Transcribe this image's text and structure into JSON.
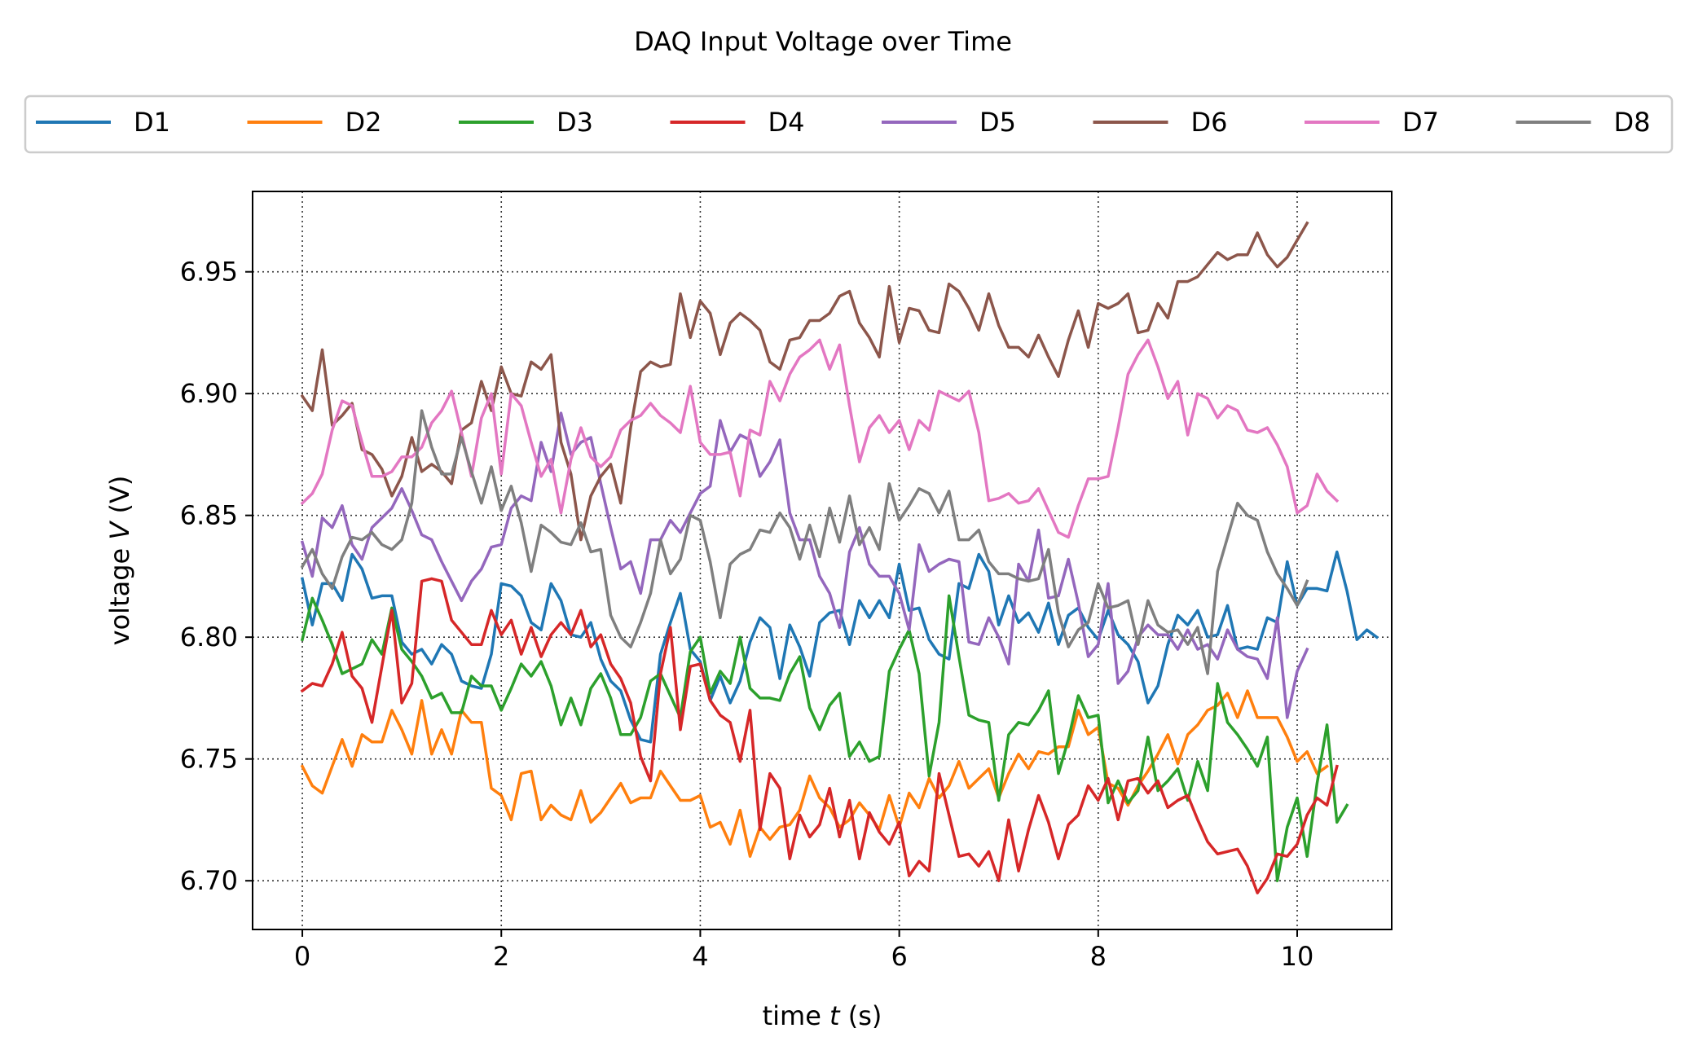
{
  "chart_data": {
    "type": "line",
    "title": "DAQ Input Voltage over Time",
    "xlabel": "time t (s)",
    "xlabel_parts": {
      "prefix": "time ",
      "var": "t",
      "suffix": " (s)"
    },
    "ylabel": "voltage V (V)",
    "ylabel_parts": {
      "prefix": "voltage ",
      "var": "V",
      "suffix": " (V)"
    },
    "xlim": [
      -0.5,
      10.95
    ],
    "ylim": [
      6.68,
      6.983
    ],
    "xticks": [
      0,
      2,
      4,
      6,
      8,
      10
    ],
    "xtick_labels": [
      "0",
      "2",
      "4",
      "6",
      "8",
      "10"
    ],
    "yticks": [
      6.7,
      6.75,
      6.8,
      6.85,
      6.9,
      6.95
    ],
    "ytick_labels": [
      "6.70",
      "6.75",
      "6.80",
      "6.85",
      "6.90",
      "6.95"
    ],
    "grid": true,
    "legend_placement": "top, above plot, single row",
    "x_step": 0.1,
    "series": [
      {
        "name": "D1",
        "color": "#1f77b4",
        "values": [
          6.824,
          6.805,
          6.822,
          6.822,
          6.815,
          6.834,
          6.828,
          6.816,
          6.817,
          6.817,
          6.798,
          6.793,
          6.795,
          6.789,
          6.797,
          6.793,
          6.782,
          6.78,
          6.779,
          6.793,
          6.822,
          6.821,
          6.817,
          6.806,
          6.803,
          6.822,
          6.815,
          6.801,
          6.8,
          6.806,
          6.791,
          6.782,
          6.778,
          6.766,
          6.758,
          6.757,
          6.793,
          6.806,
          6.818,
          6.795,
          6.79,
          6.774,
          6.784,
          6.773,
          6.782,
          6.798,
          6.808,
          6.804,
          6.783,
          6.805,
          6.796,
          6.784,
          6.806,
          6.81,
          6.811,
          6.797,
          6.815,
          6.808,
          6.815,
          6.808,
          6.83,
          6.811,
          6.812,
          6.799,
          6.793,
          6.791,
          6.822,
          6.82,
          6.834,
          6.827,
          6.805,
          6.817,
          6.806,
          6.81,
          6.802,
          6.814,
          6.797,
          6.809,
          6.812,
          6.804,
          6.799,
          6.811,
          6.801,
          6.797,
          6.79,
          6.773,
          6.78,
          6.797,
          6.809,
          6.805,
          6.811,
          6.8,
          6.801,
          6.813,
          6.795,
          6.796,
          6.795,
          6.808,
          6.806,
          6.831,
          6.813,
          6.82,
          6.82,
          6.819,
          6.835,
          6.819,
          6.799,
          6.803,
          6.8
        ]
      },
      {
        "name": "D2",
        "color": "#ff7f0e",
        "values": [
          6.747,
          6.739,
          6.736,
          6.747,
          6.758,
          6.747,
          6.76,
          6.757,
          6.757,
          6.77,
          6.762,
          6.752,
          6.774,
          6.752,
          6.762,
          6.752,
          6.77,
          6.765,
          6.765,
          6.738,
          6.735,
          6.725,
          6.744,
          6.745,
          6.725,
          6.731,
          6.727,
          6.725,
          6.737,
          6.724,
          6.728,
          6.734,
          6.74,
          6.732,
          6.734,
          6.734,
          6.745,
          6.739,
          6.733,
          6.733,
          6.735,
          6.722,
          6.724,
          6.715,
          6.729,
          6.71,
          6.722,
          6.717,
          6.722,
          6.723,
          6.729,
          6.743,
          6.734,
          6.73,
          6.722,
          6.725,
          6.732,
          6.727,
          6.721,
          6.735,
          6.722,
          6.736,
          6.73,
          6.742,
          6.734,
          6.739,
          6.749,
          6.738,
          6.742,
          6.746,
          6.734,
          6.744,
          6.752,
          6.746,
          6.753,
          6.752,
          6.755,
          6.755,
          6.77,
          6.76,
          6.763,
          6.74,
          6.738,
          6.731,
          6.739,
          6.745,
          6.752,
          6.76,
          6.748,
          6.76,
          6.764,
          6.77,
          6.772,
          6.777,
          6.767,
          6.778,
          6.767,
          6.767,
          6.767,
          6.759,
          6.749,
          6.753,
          6.744,
          6.747
        ]
      },
      {
        "name": "D3",
        "color": "#2ca02c",
        "values": [
          6.799,
          6.816,
          6.807,
          6.797,
          6.785,
          6.787,
          6.789,
          6.799,
          6.793,
          6.812,
          6.795,
          6.79,
          6.784,
          6.775,
          6.777,
          6.769,
          6.769,
          6.784,
          6.78,
          6.78,
          6.77,
          6.779,
          6.789,
          6.784,
          6.79,
          6.78,
          6.764,
          6.775,
          6.764,
          6.779,
          6.785,
          6.775,
          6.76,
          6.76,
          6.767,
          6.782,
          6.785,
          6.776,
          6.767,
          6.794,
          6.8,
          6.777,
          6.786,
          6.781,
          6.8,
          6.779,
          6.775,
          6.775,
          6.774,
          6.785,
          6.792,
          6.771,
          6.762,
          6.772,
          6.777,
          6.751,
          6.757,
          6.749,
          6.751,
          6.786,
          6.795,
          6.803,
          6.785,
          6.743,
          6.765,
          6.817,
          6.792,
          6.768,
          6.766,
          6.765,
          6.733,
          6.76,
          6.765,
          6.764,
          6.77,
          6.778,
          6.744,
          6.758,
          6.776,
          6.767,
          6.768,
          6.732,
          6.741,
          6.732,
          6.737,
          6.759,
          6.737,
          6.741,
          6.746,
          6.733,
          6.749,
          6.737,
          6.781,
          6.765,
          6.76,
          6.754,
          6.747,
          6.759,
          6.7,
          6.722,
          6.734,
          6.71,
          6.74,
          6.764,
          6.724,
          6.731
        ]
      },
      {
        "name": "D4",
        "color": "#d62728",
        "values": [
          6.778,
          6.781,
          6.78,
          6.789,
          6.802,
          6.784,
          6.779,
          6.765,
          6.788,
          6.811,
          6.773,
          6.781,
          6.823,
          6.824,
          6.823,
          6.807,
          6.802,
          6.797,
          6.797,
          6.811,
          6.801,
          6.807,
          6.793,
          6.804,
          6.792,
          6.801,
          6.806,
          6.801,
          6.811,
          6.796,
          6.801,
          6.789,
          6.783,
          6.773,
          6.751,
          6.741,
          6.785,
          6.804,
          6.762,
          6.788,
          6.789,
          6.774,
          6.768,
          6.765,
          6.749,
          6.77,
          6.721,
          6.744,
          6.738,
          6.709,
          6.727,
          6.718,
          6.723,
          6.738,
          6.718,
          6.733,
          6.709,
          6.728,
          6.72,
          6.715,
          6.724,
          6.702,
          6.708,
          6.704,
          6.744,
          6.727,
          6.71,
          6.711,
          6.706,
          6.712,
          6.7,
          6.725,
          6.704,
          6.721,
          6.735,
          6.724,
          6.709,
          6.723,
          6.727,
          6.739,
          6.733,
          6.742,
          6.725,
          6.741,
          6.742,
          6.736,
          6.741,
          6.73,
          6.733,
          6.735,
          6.725,
          6.716,
          6.711,
          6.712,
          6.713,
          6.706,
          6.695,
          6.701,
          6.711,
          6.71,
          6.715,
          6.727,
          6.734,
          6.731,
          6.747
        ]
      },
      {
        "name": "D5",
        "color": "#9467bd",
        "values": [
          6.839,
          6.825,
          6.849,
          6.845,
          6.854,
          6.838,
          6.832,
          6.845,
          6.849,
          6.853,
          6.861,
          6.852,
          6.842,
          6.84,
          6.831,
          6.823,
          6.815,
          6.823,
          6.828,
          6.837,
          6.838,
          6.853,
          6.858,
          6.856,
          6.88,
          6.868,
          6.892,
          6.875,
          6.88,
          6.882,
          6.863,
          6.845,
          6.828,
          6.831,
          6.818,
          6.84,
          6.84,
          6.848,
          6.843,
          6.851,
          6.859,
          6.862,
          6.889,
          6.876,
          6.883,
          6.881,
          6.866,
          6.872,
          6.881,
          6.851,
          6.84,
          6.84,
          6.825,
          6.818,
          6.804,
          6.835,
          6.845,
          6.83,
          6.825,
          6.825,
          6.818,
          6.803,
          6.838,
          6.827,
          6.83,
          6.832,
          6.831,
          6.798,
          6.797,
          6.808,
          6.8,
          6.789,
          6.83,
          6.823,
          6.844,
          6.816,
          6.817,
          6.832,
          6.814,
          6.792,
          6.797,
          6.822,
          6.781,
          6.786,
          6.8,
          6.805,
          6.801,
          6.801,
          6.795,
          6.803,
          6.795,
          6.797,
          6.791,
          6.803,
          6.795,
          6.792,
          6.791,
          6.783,
          6.808,
          6.767,
          6.786,
          6.795
        ]
      },
      {
        "name": "D6",
        "color": "#8c564b",
        "values": [
          6.899,
          6.893,
          6.918,
          6.887,
          6.891,
          6.896,
          6.877,
          6.875,
          6.869,
          6.858,
          6.866,
          6.882,
          6.868,
          6.871,
          6.868,
          6.863,
          6.885,
          6.888,
          6.905,
          6.893,
          6.911,
          6.9,
          6.899,
          6.913,
          6.91,
          6.916,
          6.88,
          6.867,
          6.84,
          6.858,
          6.866,
          6.871,
          6.855,
          6.886,
          6.909,
          6.913,
          6.911,
          6.912,
          6.941,
          6.923,
          6.938,
          6.933,
          6.916,
          6.929,
          6.933,
          6.93,
          6.926,
          6.913,
          6.91,
          6.922,
          6.923,
          6.93,
          6.93,
          6.933,
          6.94,
          6.942,
          6.929,
          6.923,
          6.915,
          6.944,
          6.921,
          6.935,
          6.934,
          6.926,
          6.925,
          6.945,
          6.942,
          6.935,
          6.926,
          6.941,
          6.928,
          6.919,
          6.919,
          6.915,
          6.924,
          6.915,
          6.907,
          6.922,
          6.934,
          6.919,
          6.937,
          6.935,
          6.937,
          6.941,
          6.925,
          6.926,
          6.937,
          6.931,
          6.946,
          6.946,
          6.948,
          6.953,
          6.958,
          6.955,
          6.957,
          6.957,
          6.966,
          6.957,
          6.952,
          6.956,
          6.963,
          6.97
        ]
      },
      {
        "name": "D7",
        "color": "#e377c2",
        "values": [
          6.855,
          6.859,
          6.867,
          6.885,
          6.897,
          6.895,
          6.88,
          6.866,
          6.866,
          6.868,
          6.874,
          6.874,
          6.878,
          6.888,
          6.893,
          6.901,
          6.884,
          6.866,
          6.89,
          6.9,
          6.867,
          6.9,
          6.895,
          6.88,
          6.866,
          6.873,
          6.851,
          6.873,
          6.886,
          6.874,
          6.87,
          6.874,
          6.885,
          6.889,
          6.891,
          6.896,
          6.891,
          6.888,
          6.884,
          6.903,
          6.88,
          6.875,
          6.875,
          6.876,
          6.858,
          6.885,
          6.883,
          6.905,
          6.897,
          6.908,
          6.915,
          6.918,
          6.922,
          6.91,
          6.92,
          6.895,
          6.872,
          6.886,
          6.891,
          6.884,
          6.889,
          6.877,
          6.889,
          6.885,
          6.901,
          6.899,
          6.897,
          6.901,
          6.884,
          6.856,
          6.857,
          6.859,
          6.855,
          6.856,
          6.861,
          6.852,
          6.843,
          6.841,
          6.854,
          6.865,
          6.865,
          6.866,
          6.886,
          6.908,
          6.916,
          6.922,
          6.911,
          6.898,
          6.905,
          6.883,
          6.9,
          6.898,
          6.89,
          6.895,
          6.893,
          6.885,
          6.884,
          6.886,
          6.879,
          6.87,
          6.851,
          6.854,
          6.867,
          6.86,
          6.856
        ]
      },
      {
        "name": "D8",
        "color": "#7f7f7f",
        "values": [
          6.829,
          6.836,
          6.826,
          6.82,
          6.833,
          6.841,
          6.84,
          6.843,
          6.838,
          6.836,
          6.84,
          6.855,
          6.893,
          6.878,
          6.867,
          6.867,
          6.882,
          6.868,
          6.855,
          6.87,
          6.852,
          6.862,
          6.847,
          6.827,
          6.846,
          6.843,
          6.839,
          6.838,
          6.847,
          6.835,
          6.836,
          6.809,
          6.8,
          6.796,
          6.806,
          6.818,
          6.84,
          6.826,
          6.832,
          6.85,
          6.848,
          6.831,
          6.808,
          6.83,
          6.834,
          6.836,
          6.844,
          6.843,
          6.851,
          6.845,
          6.832,
          6.846,
          6.833,
          6.853,
          6.839,
          6.858,
          6.838,
          6.845,
          6.836,
          6.863,
          6.848,
          6.854,
          6.861,
          6.859,
          6.851,
          6.86,
          6.84,
          6.84,
          6.844,
          6.831,
          6.826,
          6.826,
          6.824,
          6.823,
          6.824,
          6.836,
          6.81,
          6.796,
          6.803,
          6.806,
          6.822,
          6.812,
          6.813,
          6.815,
          6.797,
          6.815,
          6.805,
          6.802,
          6.803,
          6.797,
          6.804,
          6.785,
          6.827,
          6.841,
          6.855,
          6.85,
          6.848,
          6.835,
          6.826,
          6.82,
          6.813,
          6.823
        ]
      }
    ]
  }
}
